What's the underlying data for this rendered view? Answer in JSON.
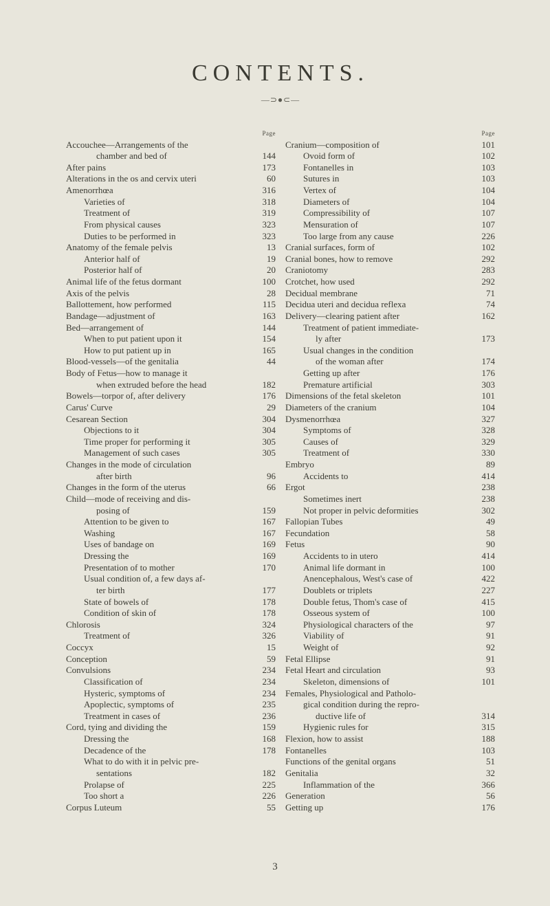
{
  "title": "CONTENTS.",
  "ornament": "—⊃●⊂—",
  "page_header_label": "Page",
  "footer_page_number": "3",
  "left_column": [
    {
      "k": "hdr"
    },
    {
      "t": "Accouchee—Arrangements of the",
      "p": "",
      "i": 1
    },
    {
      "t": "chamber and bed of",
      "p": "144",
      "i": 3
    },
    {
      "t": "After pains",
      "p": "173",
      "i": 1
    },
    {
      "t": "Alterations in the os and cervix uteri",
      "p": "60",
      "i": 1
    },
    {
      "t": "Amenorrhœa",
      "p": "316",
      "i": 1
    },
    {
      "t": "Varieties of",
      "p": "318",
      "i": 2
    },
    {
      "t": "Treatment of",
      "p": "319",
      "i": 2
    },
    {
      "t": "From physical causes",
      "p": "323",
      "i": 2
    },
    {
      "t": "Duties to be performed in",
      "p": "323",
      "i": 2
    },
    {
      "t": "Anatomy of the female pelvis",
      "p": "13",
      "i": 1
    },
    {
      "t": "Anterior half of",
      "p": "19",
      "i": 2
    },
    {
      "t": "Posterior half of",
      "p": "20",
      "i": 2
    },
    {
      "t": "Animal life of the fetus dormant",
      "p": "100",
      "i": 1
    },
    {
      "t": "Axis of the pelvis",
      "p": "28",
      "i": 1
    },
    {
      "t": "Ballottement, how performed",
      "p": "115",
      "i": 1
    },
    {
      "t": "Bandage—adjustment of",
      "p": "163",
      "i": 1
    },
    {
      "t": "Bed—arrangement of",
      "p": "144",
      "i": 1
    },
    {
      "t": "When to put patient upon it",
      "p": "154",
      "i": 2
    },
    {
      "t": "How to put patient up in",
      "p": "165",
      "i": 2
    },
    {
      "t": "Blood-vessels—of the genitalia",
      "p": "44",
      "i": 1
    },
    {
      "t": "Body of Fetus—how to manage it",
      "p": "",
      "i": 1
    },
    {
      "t": "when extruded before the head",
      "p": "182",
      "i": 3
    },
    {
      "t": "Bowels—torpor of, after delivery",
      "p": "176",
      "i": 1
    },
    {
      "t": "Carus' Curve",
      "p": "29",
      "i": 1
    },
    {
      "t": "Cesarean Section",
      "p": "304",
      "i": 1
    },
    {
      "t": "Objections to it",
      "p": "304",
      "i": 2
    },
    {
      "t": "Time proper for performing it",
      "p": "305",
      "i": 2
    },
    {
      "t": "Management of such cases",
      "p": "305",
      "i": 2
    },
    {
      "t": "Changes in the mode of circulation",
      "p": "",
      "i": 1
    },
    {
      "t": "after birth",
      "p": "96",
      "i": 3
    },
    {
      "t": "Changes in the form of the uterus",
      "p": "66",
      "i": 1
    },
    {
      "t": "Child—mode of receiving and dis-",
      "p": "",
      "i": 1
    },
    {
      "t": "posing of",
      "p": "159",
      "i": 3
    },
    {
      "t": "Attention to be given to",
      "p": "167",
      "i": 2
    },
    {
      "t": "Washing",
      "p": "167",
      "i": 2
    },
    {
      "t": "Uses of bandage on",
      "p": "169",
      "i": 2
    },
    {
      "t": "Dressing the",
      "p": "169",
      "i": 2
    },
    {
      "t": "Presentation of to mother",
      "p": "170",
      "i": 2
    },
    {
      "t": "Usual condition of, a few days af-",
      "p": "",
      "i": 2
    },
    {
      "t": "ter birth",
      "p": "177",
      "i": 3
    },
    {
      "t": "State of bowels of",
      "p": "178",
      "i": 2
    },
    {
      "t": "Condition of skin of",
      "p": "178",
      "i": 2
    },
    {
      "t": "Chlorosis",
      "p": "324",
      "i": 1
    },
    {
      "t": "Treatment of",
      "p": "326",
      "i": 2
    },
    {
      "t": "Coccyx",
      "p": "15",
      "i": 1
    },
    {
      "t": "Conception",
      "p": "59",
      "i": 1
    },
    {
      "t": "Convulsions",
      "p": "234",
      "i": 1
    },
    {
      "t": "Classification of",
      "p": "234",
      "i": 2
    },
    {
      "t": "Hysteric, symptoms of",
      "p": "234",
      "i": 2
    },
    {
      "t": "Apoplectic, symptoms of",
      "p": "235",
      "i": 2
    },
    {
      "t": "Treatment in cases of",
      "p": "236",
      "i": 2
    },
    {
      "t": "Cord, tying and dividing the",
      "p": "159",
      "i": 1
    },
    {
      "t": "Dressing the",
      "p": "168",
      "i": 2
    },
    {
      "t": "Decadence of the",
      "p": "178",
      "i": 2
    },
    {
      "t": "What to do with it in pelvic pre-",
      "p": "",
      "i": 2
    },
    {
      "t": "sentations",
      "p": "182",
      "i": 3
    },
    {
      "t": "Prolapse of",
      "p": "225",
      "i": 2
    },
    {
      "t": "Too short a",
      "p": "226",
      "i": 2
    },
    {
      "t": "Corpus Luteum",
      "p": "55",
      "i": 1
    }
  ],
  "right_column": [
    {
      "k": "hdr"
    },
    {
      "t": "Cranium—composition of",
      "p": "101",
      "i": 1
    },
    {
      "t": "Ovoid form of",
      "p": "102",
      "i": 2
    },
    {
      "t": "Fontanelles in",
      "p": "103",
      "i": 2
    },
    {
      "t": "Sutures in",
      "p": "103",
      "i": 2
    },
    {
      "t": "Vertex of",
      "p": "104",
      "i": 2
    },
    {
      "t": "Diameters of",
      "p": "104",
      "i": 2
    },
    {
      "t": "Compressibility of",
      "p": "107",
      "i": 2
    },
    {
      "t": "Mensuration of",
      "p": "107",
      "i": 2
    },
    {
      "t": "Too large from any cause",
      "p": "226",
      "i": 2
    },
    {
      "t": "Cranial surfaces, form of",
      "p": "102",
      "i": 1
    },
    {
      "t": "Cranial bones, how to remove",
      "p": "292",
      "i": 1
    },
    {
      "t": "Craniotomy",
      "p": "283",
      "i": 1
    },
    {
      "t": "Crotchet, how used",
      "p": "292",
      "i": 1
    },
    {
      "t": "Decidual membrane",
      "p": "71",
      "i": 1
    },
    {
      "t": "Decidua uteri and decidua reflexa",
      "p": "74",
      "i": 1
    },
    {
      "t": "Delivery—clearing patient after",
      "p": "162",
      "i": 1
    },
    {
      "t": "Treatment of patient immediate-",
      "p": "",
      "i": 2
    },
    {
      "t": "ly after",
      "p": "173",
      "i": 3
    },
    {
      "t": "Usual changes in the condition",
      "p": "",
      "i": 2
    },
    {
      "t": "of the woman after",
      "p": "174",
      "i": 3
    },
    {
      "t": "Getting up after",
      "p": "176",
      "i": 2
    },
    {
      "t": "Premature artificial",
      "p": "303",
      "i": 2
    },
    {
      "t": "Dimensions of the fetal skeleton",
      "p": "101",
      "i": 1
    },
    {
      "t": "Diameters of the cranium",
      "p": "104",
      "i": 1
    },
    {
      "t": "Dysmenorrhœa",
      "p": "327",
      "i": 1
    },
    {
      "t": "Symptoms of",
      "p": "328",
      "i": 2
    },
    {
      "t": "Causes of",
      "p": "329",
      "i": 2
    },
    {
      "t": "Treatment of",
      "p": "330",
      "i": 2
    },
    {
      "t": "Embryo",
      "p": "89",
      "i": 1
    },
    {
      "t": "Accidents to",
      "p": "414",
      "i": 2
    },
    {
      "t": "Ergot",
      "p": "238",
      "i": 1
    },
    {
      "t": "Sometimes inert",
      "p": "238",
      "i": 2
    },
    {
      "t": "Not proper in pelvic deformities",
      "p": "302",
      "i": 2
    },
    {
      "t": "Fallopian Tubes",
      "p": "49",
      "i": 1
    },
    {
      "t": "Fecundation",
      "p": "58",
      "i": 1
    },
    {
      "t": "Fetus",
      "p": "90",
      "i": 1
    },
    {
      "t": "Accidents to in utero",
      "p": "414",
      "i": 2
    },
    {
      "t": "Animal life dormant in",
      "p": "100",
      "i": 2
    },
    {
      "t": "Anencephalous, West's case of",
      "p": "422",
      "i": 2
    },
    {
      "t": "Doublets or triplets",
      "p": "227",
      "i": 2
    },
    {
      "t": "Double fetus, Thom's case of",
      "p": "415",
      "i": 2
    },
    {
      "t": "Osseous system of",
      "p": "100",
      "i": 2
    },
    {
      "t": "Physiological characters of the",
      "p": "97",
      "i": 2
    },
    {
      "t": "Viability of",
      "p": "91",
      "i": 2
    },
    {
      "t": "Weight of",
      "p": "92",
      "i": 2
    },
    {
      "t": "Fetal Ellipse",
      "p": "91",
      "i": 1
    },
    {
      "t": "Fetal Heart and circulation",
      "p": "93",
      "i": 1
    },
    {
      "t": "Skeleton, dimensions of",
      "p": "101",
      "i": 2
    },
    {
      "t": "Females, Physiological and Patholo-",
      "p": "",
      "i": 1
    },
    {
      "t": "gical condition during the repro-",
      "p": "",
      "i": 2
    },
    {
      "t": "ductive life of",
      "p": "314",
      "i": 3
    },
    {
      "t": "Hygienic rules for",
      "p": "315",
      "i": 2
    },
    {
      "t": "Flexion, how to assist",
      "p": "188",
      "i": 1
    },
    {
      "t": "Fontanelles",
      "p": "103",
      "i": 1
    },
    {
      "t": "Functions of the genital organs",
      "p": "51",
      "i": 1
    },
    {
      "t": "Genitalia",
      "p": "32",
      "i": 1
    },
    {
      "t": "Inflammation of the",
      "p": "366",
      "i": 2
    },
    {
      "t": "Generation",
      "p": "56",
      "i": 1
    },
    {
      "t": "Getting up",
      "p": "176",
      "i": 1
    }
  ]
}
